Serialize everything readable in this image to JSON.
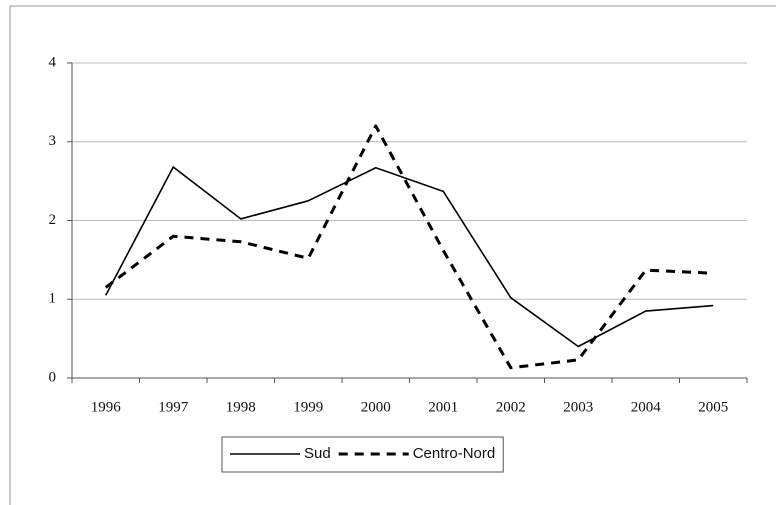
{
  "chart_data": {
    "type": "line",
    "categories": [
      "1996",
      "1997",
      "1998",
      "1999",
      "2000",
      "2001",
      "2002",
      "2003",
      "2004",
      "2005"
    ],
    "series": [
      {
        "name": "Sud",
        "color": "#000000",
        "line_style": "solid",
        "values": [
          1.05,
          2.68,
          2.02,
          2.25,
          2.67,
          2.37,
          1.02,
          0.4,
          0.85,
          0.92
        ]
      },
      {
        "name": "Centro-Nord",
        "color": "#000000",
        "line_style": "dashed",
        "values": [
          1.15,
          1.8,
          1.73,
          1.52,
          3.2,
          1.62,
          0.13,
          0.23,
          1.37,
          1.33
        ]
      }
    ],
    "ylim": [
      0,
      4
    ],
    "yticks": [
      0,
      1,
      2,
      3,
      4
    ],
    "grid": true,
    "legend": "bottom"
  }
}
